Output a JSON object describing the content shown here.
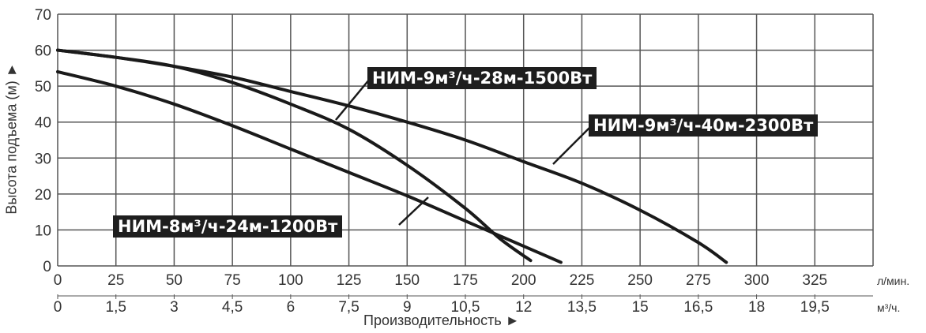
{
  "chart_data": {
    "type": "line",
    "xlabel": "Производительность ►",
    "ylabel": "Высота подъема (м) ►",
    "xlim": [
      0,
      350
    ],
    "ylim": [
      0,
      70
    ],
    "grid": true,
    "x_ticks": [
      0,
      25,
      50,
      75,
      100,
      125,
      150,
      175,
      200,
      225,
      250,
      275,
      300,
      325
    ],
    "x_ticks_secondary": [
      "0",
      "1,5",
      "3",
      "4,5",
      "6",
      "7,5",
      "9",
      "10,5",
      "12",
      "13,5",
      "15",
      "16,5",
      "18",
      "19,5"
    ],
    "x_unit": "л/мин.",
    "x_unit_secondary": "м³/ч.",
    "y_ticks": [
      0,
      10,
      20,
      30,
      40,
      50,
      60,
      70
    ],
    "series": [
      {
        "name": "НИМ-8м³/ч-24м-1200Вт",
        "x": [
          0,
          25,
          50,
          75,
          100,
          125,
          150,
          175,
          200,
          216
        ],
        "y": [
          54,
          50,
          45,
          39,
          32.5,
          26,
          19.5,
          12.5,
          5.5,
          1
        ]
      },
      {
        "name": "НИМ-9м³/ч-28м-1500Вт",
        "x": [
          0,
          25,
          50,
          75,
          100,
          125,
          150,
          175,
          190,
          203
        ],
        "y": [
          60,
          58,
          55.5,
          51,
          45,
          38,
          28,
          16,
          7.5,
          1.5
        ]
      },
      {
        "name": "НИМ-9м³/ч-40м-2300Вт",
        "x": [
          0,
          25,
          50,
          75,
          100,
          125,
          150,
          175,
          200,
          225,
          250,
          275,
          287
        ],
        "y": [
          60,
          58,
          55.5,
          52.5,
          48.5,
          44.5,
          40,
          35,
          29,
          23,
          15.5,
          6.5,
          1
        ]
      }
    ]
  }
}
